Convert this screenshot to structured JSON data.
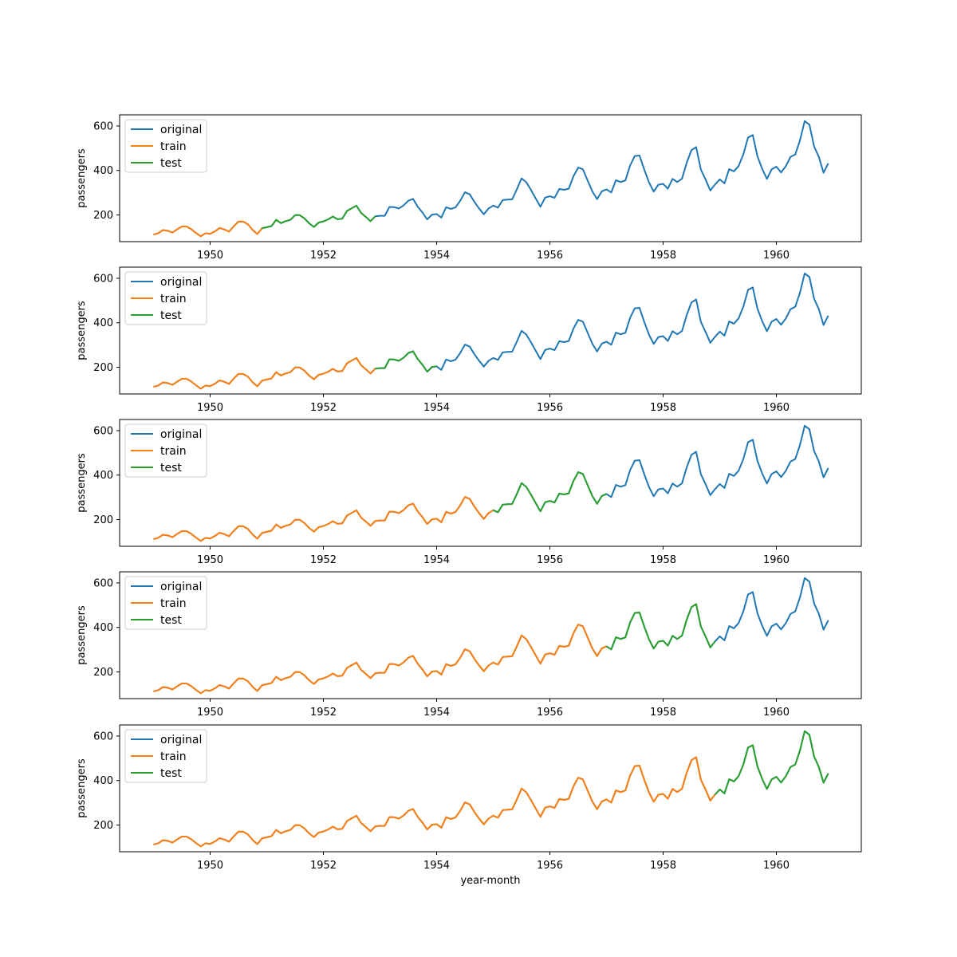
{
  "chart_data": {
    "type": "line",
    "xlabel": "year-month",
    "ylabel": "passengers",
    "x_start": "1949-01",
    "x_end": "1960-12",
    "x_ticks": [
      "1950",
      "1952",
      "1954",
      "1956",
      "1958",
      "1960"
    ],
    "y_ticks": [
      "200",
      "400",
      "600"
    ],
    "ylim": [
      80,
      650
    ],
    "grid": false,
    "legend_position": "upper-left",
    "legend": [
      "original",
      "train",
      "test"
    ],
    "colors": {
      "original": "#1f77b4",
      "train": "#ff7f0e",
      "test": "#2ca02c"
    },
    "original": [
      112,
      118,
      132,
      129,
      121,
      135,
      148,
      148,
      136,
      119,
      104,
      118,
      115,
      126,
      141,
      135,
      125,
      149,
      170,
      170,
      158,
      133,
      114,
      140,
      145,
      150,
      178,
      163,
      172,
      178,
      199,
      199,
      184,
      162,
      146,
      166,
      171,
      180,
      193,
      181,
      183,
      218,
      230,
      242,
      209,
      191,
      172,
      194,
      196,
      196,
      236,
      235,
      229,
      243,
      264,
      272,
      237,
      211,
      180,
      201,
      204,
      188,
      235,
      227,
      234,
      264,
      302,
      293,
      259,
      229,
      203,
      229,
      242,
      233,
      267,
      269,
      270,
      315,
      364,
      347,
      312,
      274,
      237,
      278,
      284,
      277,
      317,
      313,
      318,
      374,
      413,
      405,
      355,
      306,
      271,
      306,
      315,
      301,
      356,
      348,
      355,
      422,
      465,
      467,
      404,
      347,
      305,
      336,
      340,
      318,
      362,
      348,
      363,
      435,
      491,
      505,
      404,
      359,
      310,
      337,
      360,
      342,
      406,
      396,
      420,
      472,
      548,
      559,
      463,
      407,
      362,
      405,
      417,
      391,
      419,
      461,
      472,
      535,
      622,
      606,
      508,
      461,
      390,
      432
    ],
    "panels": [
      {
        "train": [
          "1949-01",
          "1950-12"
        ],
        "test": [
          "1950-12",
          "1952-12"
        ]
      },
      {
        "train": [
          "1949-01",
          "1952-12"
        ],
        "test": [
          "1952-12",
          "1954-01"
        ]
      },
      {
        "train": [
          "1949-01",
          "1955-01"
        ],
        "test": [
          "1955-01",
          "1957-01"
        ]
      },
      {
        "train": [
          "1949-01",
          "1957-01"
        ],
        "test": [
          "1957-01",
          "1958-12"
        ]
      },
      {
        "train": [
          "1949-01",
          "1958-12"
        ],
        "test": [
          "1958-12",
          "1960-12"
        ]
      }
    ]
  }
}
